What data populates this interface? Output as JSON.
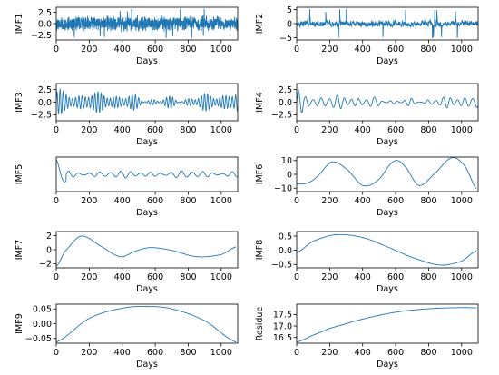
{
  "chart_data": [
    {
      "type": "line",
      "ylabel": "IMF1",
      "xlabel": "Days",
      "xlim": [
        0,
        1100
      ],
      "ylim": [
        -3.6,
        3.6
      ],
      "xticks": [
        0,
        200,
        400,
        600,
        800,
        1000
      ],
      "yticks": [
        {
          "v": 2.5,
          "t": "2.5"
        },
        {
          "v": 0.0,
          "t": "0.0"
        },
        {
          "v": -2.5,
          "t": "−2.5"
        }
      ],
      "series": [
        {
          "color": "#1f77b4",
          "kind": "noise",
          "amp": 1.5,
          "peak": 3.3,
          "freq": 0.9,
          "n": 1100,
          "seed": 11
        }
      ]
    },
    {
      "type": "line",
      "ylabel": "IMF2",
      "xlabel": "Days",
      "xlim": [
        0,
        1100
      ],
      "ylim": [
        -5.8,
        5.8
      ],
      "xticks": [
        0,
        200,
        400,
        600,
        800,
        1000
      ],
      "yticks": [
        {
          "v": 5,
          "t": "5"
        },
        {
          "v": 0,
          "t": "0"
        },
        {
          "v": -5,
          "t": "−5"
        }
      ],
      "series": [
        {
          "color": "#1f77b4",
          "kind": "noise",
          "amp": 1.7,
          "peak": 5.2,
          "freq": 0.45,
          "n": 1100,
          "seed": 23
        }
      ]
    },
    {
      "type": "line",
      "ylabel": "IMF3",
      "xlabel": "Days",
      "xlim": [
        0,
        1100
      ],
      "ylim": [
        -3.7,
        3.7
      ],
      "xticks": [
        0,
        200,
        400,
        600,
        800,
        1000
      ],
      "yticks": [
        {
          "v": 2.5,
          "t": "2.5"
        },
        {
          "v": 0.0,
          "t": "0.0"
        },
        {
          "v": -2.5,
          "t": "−2.5"
        }
      ],
      "series": [
        {
          "color": "#1f77b4",
          "kind": "osc",
          "period": 19,
          "amp": 1.5,
          "peak": 3.4,
          "n": 1100,
          "seed": 5
        }
      ]
    },
    {
      "type": "line",
      "ylabel": "IMF4",
      "xlabel": "Days",
      "xlim": [
        0,
        1100
      ],
      "ylim": [
        -3.7,
        3.7
      ],
      "xticks": [
        0,
        200,
        400,
        600,
        800,
        1000
      ],
      "yticks": [
        {
          "v": 2.5,
          "t": "2.5"
        },
        {
          "v": 0.0,
          "t": "0.0"
        },
        {
          "v": -2.5,
          "t": "−2.5"
        }
      ],
      "series": [
        {
          "color": "#1f77b4",
          "kind": "osc",
          "period": 46,
          "amp": 1.0,
          "peak": 3.5,
          "n": 1100,
          "seed": 9
        }
      ]
    },
    {
      "type": "line",
      "ylabel": "IMF5",
      "xlabel": "Days",
      "xlim": [
        0,
        1100
      ],
      "ylim": [
        -6.5,
        6.5
      ],
      "xticks": [
        0,
        200,
        400,
        600,
        800,
        1000
      ],
      "yticks": [],
      "series": [
        {
          "color": "#1f77b4",
          "kind": "osc5",
          "n": 1100,
          "seed": 3
        }
      ]
    },
    {
      "type": "line",
      "ylabel": "IMF6",
      "xlabel": "Days",
      "xlim": [
        0,
        1100
      ],
      "ylim": [
        -12.5,
        12.5
      ],
      "xticks": [
        0,
        200,
        400,
        600,
        800,
        1000
      ],
      "yticks": [
        {
          "v": 10,
          "t": "10"
        },
        {
          "v": 0,
          "t": "0"
        },
        {
          "v": -10,
          "t": "−10"
        }
      ],
      "series": [
        {
          "color": "#1f77b4",
          "kind": "smooth",
          "x": [
            0,
            60,
            120,
            215,
            310,
            400,
            490,
            590,
            655,
            740,
            840,
            940,
            1020,
            1090
          ],
          "y": [
            -7,
            -6.5,
            -2,
            9,
            3,
            -8,
            -4.5,
            9.5,
            6,
            -8,
            1,
            12,
            6,
            -10.5
          ]
        }
      ]
    },
    {
      "type": "line",
      "ylabel": "IMF7",
      "xlabel": "Days",
      "xlim": [
        0,
        1100
      ],
      "ylim": [
        -2.6,
        2.6
      ],
      "xticks": [
        0,
        200,
        400,
        600,
        800,
        1000
      ],
      "yticks": [
        {
          "v": 2,
          "t": "2"
        },
        {
          "v": 0,
          "t": "0"
        },
        {
          "v": -2,
          "t": "−2"
        }
      ],
      "series": [
        {
          "color": "#1f77b4",
          "kind": "smooth",
          "x": [
            0,
            50,
            150,
            270,
            390,
            480,
            570,
            700,
            850,
            1000,
            1090
          ],
          "y": [
            -2.4,
            -0.3,
            1.95,
            0.5,
            -1.0,
            -0.2,
            0.3,
            -0.1,
            -1.0,
            -0.7,
            0.4
          ]
        }
      ]
    },
    {
      "type": "line",
      "ylabel": "IMF8",
      "xlabel": "Days",
      "xlim": [
        0,
        1100
      ],
      "ylim": [
        -0.62,
        0.66
      ],
      "xticks": [
        0,
        200,
        400,
        600,
        800,
        1000
      ],
      "yticks": [
        {
          "v": 0.5,
          "t": "0.5"
        },
        {
          "v": 0.0,
          "t": "0.0"
        },
        {
          "v": -0.5,
          "t": "−0.5"
        }
      ],
      "series": [
        {
          "color": "#1f77b4",
          "kind": "smooth",
          "x": [
            0,
            100,
            240,
            400,
            550,
            700,
            870,
            1000,
            1090
          ],
          "y": [
            -0.08,
            0.32,
            0.55,
            0.45,
            0.12,
            -0.25,
            -0.52,
            -0.38,
            -0.02
          ]
        }
      ]
    },
    {
      "type": "line",
      "ylabel": "IMF9",
      "xlabel": "Days",
      "xlim": [
        0,
        1100
      ],
      "ylim": [
        -0.066,
        0.066
      ],
      "xticks": [
        0,
        200,
        400,
        600,
        800,
        1000
      ],
      "yticks": [
        {
          "v": 0.05,
          "t": "0.05"
        },
        {
          "v": 0.0,
          "t": "0.00"
        },
        {
          "v": -0.05,
          "t": "−0.05"
        }
      ],
      "series": [
        {
          "color": "#1f77b4",
          "kind": "smooth",
          "x": [
            0,
            200,
            400,
            550,
            700,
            900,
            1090
          ],
          "y": [
            -0.062,
            0.018,
            0.052,
            0.058,
            0.05,
            0.01,
            -0.062
          ]
        }
      ]
    },
    {
      "type": "line",
      "ylabel": "Residue",
      "xlabel": "Days",
      "xlim": [
        0,
        1100
      ],
      "ylim": [
        16.25,
        17.95
      ],
      "xticks": [
        0,
        200,
        400,
        600,
        800,
        1000
      ],
      "yticks": [
        {
          "v": 17.5,
          "t": "17.5"
        },
        {
          "v": 17.0,
          "t": "17.0"
        },
        {
          "v": 16.5,
          "t": "16.5"
        }
      ],
      "series": [
        {
          "color": "#1f77b4",
          "kind": "smooth",
          "x": [
            0,
            100,
            200,
            400,
            600,
            800,
            1000,
            1090
          ],
          "y": [
            16.3,
            16.6,
            16.9,
            17.3,
            17.6,
            17.75,
            17.8,
            17.79
          ]
        }
      ]
    }
  ]
}
